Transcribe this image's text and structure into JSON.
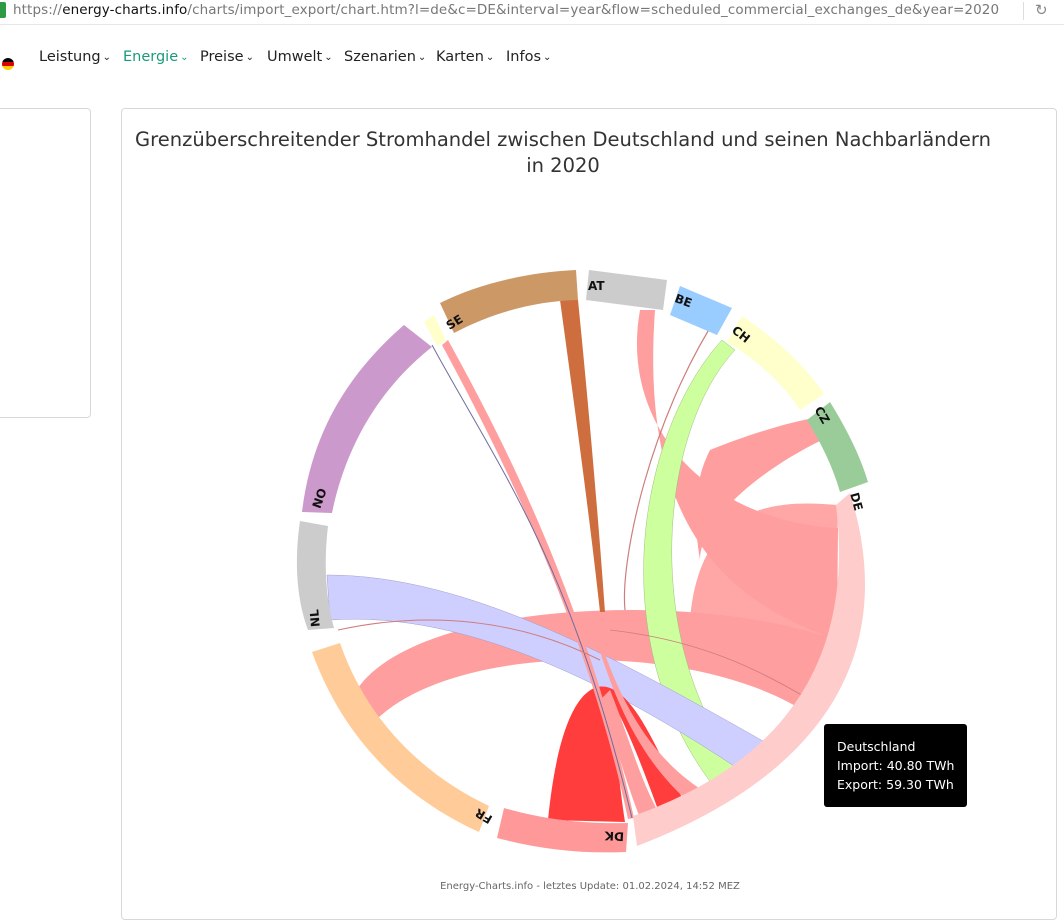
{
  "browser": {
    "url_prefix": "https://",
    "url_domain": "energy-charts.info",
    "url_path": "/charts/import_export/chart.htm?l=de&c=DE&interval=year&flow=scheduled_commercial_exchanges_de&year=2020",
    "reload_glyph": "↻"
  },
  "nav": {
    "flag_icon": "germany-flag-icon",
    "items": [
      {
        "label": "Leistung"
      },
      {
        "label": "Energie"
      },
      {
        "label": "Preise"
      },
      {
        "label": "Umwelt"
      },
      {
        "label": "Szenarien"
      },
      {
        "label": "Karten"
      },
      {
        "label": "Infos"
      }
    ],
    "active": "Energie",
    "active_color": "#1a9a7a"
  },
  "chart_data": {
    "type": "chord",
    "title": "Grenzüberschreitender Stromhandel zwischen Deutschland und seinen Nachbarländern in 2020",
    "countries": [
      {
        "code": "AT",
        "color": "#cccccc"
      },
      {
        "code": "BE",
        "color": "#99ccff"
      },
      {
        "code": "CH",
        "color": "#ffffcc"
      },
      {
        "code": "CZ",
        "color": "#99cc99"
      },
      {
        "code": "DE",
        "color": "#ffcccc"
      },
      {
        "code": "DK",
        "color": "#ff9999"
      },
      {
        "code": "FR",
        "color": "#ffcc99"
      },
      {
        "code": "NL",
        "color": "#cccccc"
      },
      {
        "code": "NO",
        "color": "#cc99cc"
      },
      {
        "code": "SE",
        "color": "#cc9966"
      }
    ],
    "flow_colors": {
      "de_export": "#ff9999",
      "dk": "#ff3333",
      "ch": "#ccff99",
      "nl": "#ccccff",
      "se": "#cc6633",
      "no": "#666699"
    },
    "tooltip": {
      "country": "Deutschland",
      "import_label": "Import:",
      "import_value": "40.80 TWh",
      "export_label": "Export:",
      "export_value": "59.30 TWh"
    }
  },
  "footer": {
    "text": "Energy-Charts.info - letztes Update: 01.02.2024, 14:52 MEZ"
  }
}
